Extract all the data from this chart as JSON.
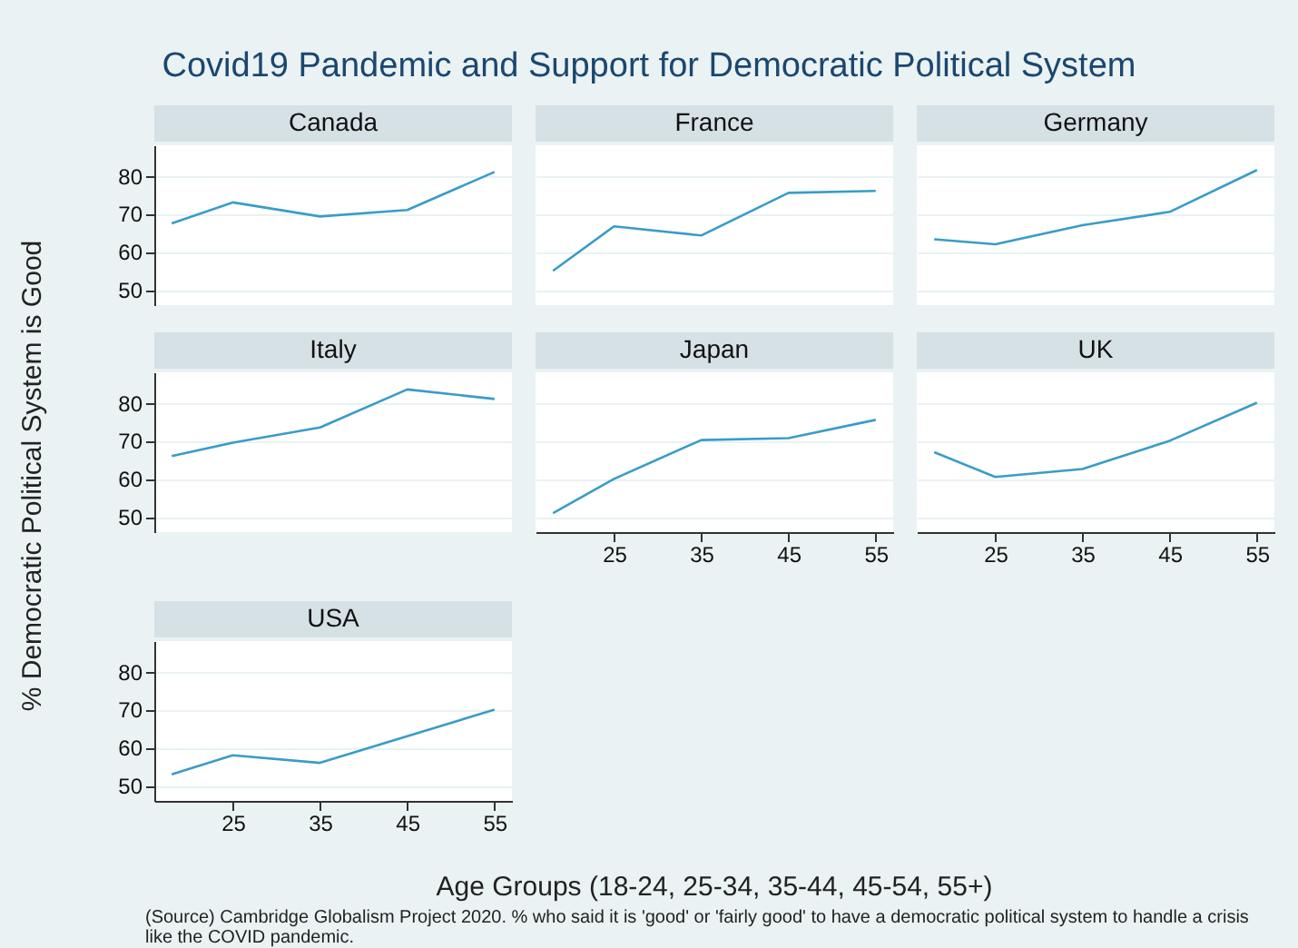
{
  "chart_data": [
    {
      "type": "other",
      "title": "Covid19 Pandemic and Support for Democratic Political System",
      "xlabel": "Age Groups (18-24, 25-34, 35-44, 45-54, 55+)",
      "ylabel": "% Democratic Political System is Good",
      "annotations": [
        "(Source) Cambridge Globalism Project 2020. % who said it is 'good' or 'fairly good' to have a democratic political system to handle a crisis like the COVID pandemic."
      ]
    },
    {
      "type": "line",
      "title": "Canada",
      "x": [
        18,
        25,
        35,
        45,
        55
      ],
      "series": [
        {
          "color": "#3a9cc8",
          "values": [
            67.5,
            73,
            69.3,
            71,
            81
          ]
        }
      ],
      "xlim": [
        16,
        57
      ],
      "ylim": [
        46,
        88
      ],
      "xticks": [
        25,
        35,
        45,
        55
      ],
      "yticks": [
        50,
        60,
        70,
        80
      ],
      "grid": "y",
      "tick_labels": "y"
    },
    {
      "type": "line",
      "title": "France",
      "x": [
        18,
        25,
        35,
        45,
        55
      ],
      "series": [
        {
          "color": "#3a9cc8",
          "values": [
            55,
            66.7,
            64.3,
            75.5,
            76
          ]
        }
      ],
      "xlim": [
        16,
        57
      ],
      "ylim": [
        46,
        88
      ],
      "xticks": [
        25,
        35,
        45,
        55
      ],
      "yticks": [
        50,
        60,
        70,
        80
      ],
      "grid": "y",
      "tick_labels": false
    },
    {
      "type": "line",
      "title": "Germany",
      "x": [
        18,
        25,
        35,
        45,
        55
      ],
      "series": [
        {
          "color": "#3a9cc8",
          "values": [
            63.3,
            62,
            67,
            70.5,
            81.5
          ]
        }
      ],
      "xlim": [
        16,
        57
      ],
      "ylim": [
        46,
        88
      ],
      "xticks": [
        25,
        35,
        45,
        55
      ],
      "yticks": [
        50,
        60,
        70,
        80
      ],
      "grid": "y",
      "tick_labels": false
    },
    {
      "type": "line",
      "title": "Italy",
      "x": [
        18,
        25,
        35,
        45,
        55
      ],
      "series": [
        {
          "color": "#3a9cc8",
          "values": [
            66,
            69.5,
            73.5,
            83.5,
            81
          ]
        }
      ],
      "xlim": [
        16,
        57
      ],
      "ylim": [
        46,
        88
      ],
      "xticks": [
        25,
        35,
        45,
        55
      ],
      "yticks": [
        50,
        60,
        70,
        80
      ],
      "grid": "y",
      "tick_labels": "y"
    },
    {
      "type": "line",
      "title": "Japan",
      "x": [
        18,
        25,
        35,
        45,
        55
      ],
      "series": [
        {
          "color": "#3a9cc8",
          "values": [
            51,
            60,
            70.2,
            70.7,
            75.5
          ]
        }
      ],
      "xlim": [
        16,
        57
      ],
      "ylim": [
        46,
        88
      ],
      "xticks": [
        25,
        35,
        45,
        55
      ],
      "yticks": [
        50,
        60,
        70,
        80
      ],
      "grid": "y",
      "tick_labels": "x"
    },
    {
      "type": "line",
      "title": "UK",
      "x": [
        18,
        25,
        35,
        45,
        55
      ],
      "series": [
        {
          "color": "#3a9cc8",
          "values": [
            67,
            60.5,
            62.6,
            70,
            80
          ]
        }
      ],
      "xlim": [
        16,
        57
      ],
      "ylim": [
        46,
        88
      ],
      "xticks": [
        25,
        35,
        45,
        55
      ],
      "yticks": [
        50,
        60,
        70,
        80
      ],
      "grid": "y",
      "tick_labels": "x"
    },
    {
      "type": "line",
      "title": "USA",
      "x": [
        18,
        25,
        35,
        45,
        55
      ],
      "series": [
        {
          "color": "#3a9cc8",
          "values": [
            53,
            58,
            56,
            63,
            70
          ]
        }
      ],
      "xlim": [
        16,
        57
      ],
      "ylim": [
        46,
        88
      ],
      "xticks": [
        25,
        35,
        45,
        55
      ],
      "yticks": [
        50,
        60,
        70,
        80
      ],
      "grid": "y"
    }
  ]
}
